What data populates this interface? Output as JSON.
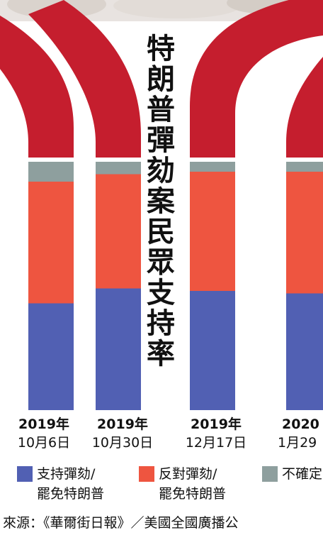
{
  "title_chars": [
    "特",
    "朗",
    "普",
    "彈",
    "劾",
    "案",
    "民",
    "眾",
    "支",
    "持",
    "率"
  ],
  "colors": {
    "support": "#5160b3",
    "oppose": "#ee5540",
    "unsure": "#8e9f9e",
    "arch": "#c51e2e",
    "background": "#ffffff"
  },
  "chart_data": {
    "type": "bar",
    "stacked": true,
    "categories": [
      {
        "year": "2019年",
        "date": "10月6日"
      },
      {
        "year": "2019年",
        "date": "10月30日"
      },
      {
        "year": "2019年",
        "date": "12月17日"
      },
      {
        "year": "2020",
        "date": "1月29"
      }
    ],
    "series": [
      {
        "name_line1": "支持彈劾/",
        "name_line2": "罷免特朗普",
        "values": [
          43,
          49,
          48,
          47
        ],
        "color_key": "support"
      },
      {
        "name_line1": "反對彈劾/",
        "name_line2": "罷免特朗普",
        "values": [
          49,
          46,
          48,
          49
        ],
        "color_key": "oppose"
      },
      {
        "name_line1": "不確定",
        "name_line2": "",
        "values": [
          8,
          5,
          4,
          4
        ],
        "color_key": "unsure"
      }
    ]
  },
  "source": "來源：《華爾街日報》／美國全國廣播公"
}
